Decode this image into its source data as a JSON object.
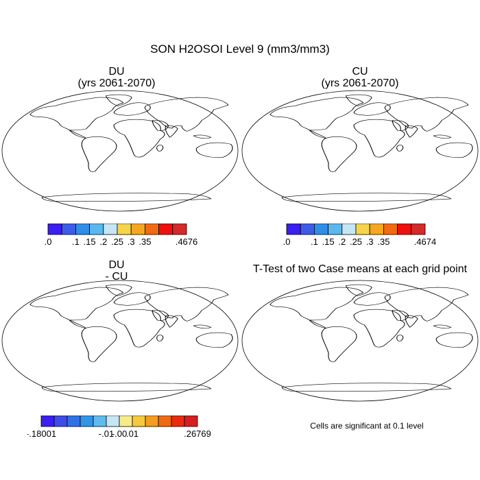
{
  "main_title": "SON H2OSOI Level 9 (mm3/mm3)",
  "panels": [
    {
      "name": "du",
      "title_line1": "DU",
      "title_line2": "(yrs 2061-2070)",
      "colorbar": {
        "colors": [
          "#3a1ff0",
          "#3d5ce8",
          "#2e8ee8",
          "#5bb8ee",
          "#c6e6f3",
          "#f6d44a",
          "#f7a61f",
          "#f26a12",
          "#ee1010",
          "#d42a2a"
        ],
        "labels": [
          ".0",
          ".1",
          ".15",
          ".2",
          ".25",
          ".3",
          ".35",
          ".4676"
        ]
      }
    },
    {
      "name": "cu",
      "title_line1": "CU",
      "title_line2": "(yrs 2061-2070)",
      "colorbar": {
        "colors": [
          "#3a1ff0",
          "#3d5ce8",
          "#2e8ee8",
          "#5bb8ee",
          "#c6e6f3",
          "#f6d44a",
          "#f7a61f",
          "#f26a12",
          "#ee1010",
          "#d42a2a"
        ],
        "labels": [
          ".0",
          ".1",
          ".15",
          ".2",
          ".25",
          ".3",
          ".35",
          ".4674"
        ]
      }
    },
    {
      "name": "difference",
      "title_line1": "DU",
      "title_line2": "- CU",
      "colorbar": {
        "colors": [
          "#3a1ff0",
          "#3d4ce8",
          "#2f72e6",
          "#3296e8",
          "#5fbcee",
          "#c6e6f3",
          "#f8ec8a",
          "#f7c93c",
          "#f59d20",
          "#f26812",
          "#ea2a10",
          "#d42020"
        ],
        "labels": [
          "-.18001",
          "-.01",
          "-.00",
          ".01",
          ".26769"
        ]
      }
    },
    {
      "name": "ttest",
      "title_line1": "T-Test of two Case means at each grid point",
      "note": "Cells are significant at 0.1 level",
      "significance_color": "#ff0000"
    }
  ]
}
